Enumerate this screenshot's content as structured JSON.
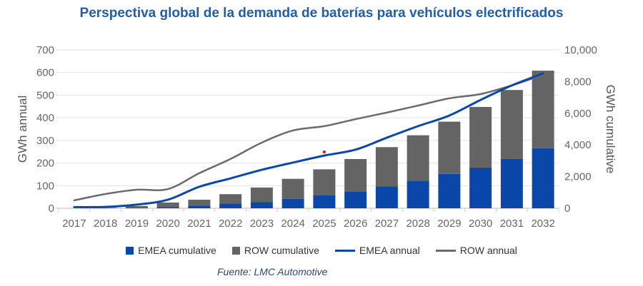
{
  "chart_data": {
    "type": "bar",
    "title": "Perspectiva global de la demanda de baterías para vehículos electrificados",
    "categories": [
      "2017",
      "2018",
      "2019",
      "2020",
      "2021",
      "2022",
      "2023",
      "2024",
      "2025",
      "2026",
      "2027",
      "2028",
      "2029",
      "2030",
      "2031",
      "2032"
    ],
    "ylabel_left": "GWh annual",
    "ylabel_right": "GWh cumulative",
    "ylim_left": [
      0,
      700
    ],
    "yticks_left": [
      "0",
      "100",
      "200",
      "300",
      "400",
      "500",
      "600",
      "700"
    ],
    "ylim_right": [
      0,
      10000
    ],
    "yticks_right": [
      "0",
      "2,000",
      "4,000",
      "6,000",
      "8,000",
      "10,000"
    ],
    "grid": true,
    "stacked": true,
    "legend_position": "bottom",
    "series": [
      {
        "name": "EMEA cumulative",
        "type": "bar",
        "axis": "right",
        "color": "#0a47a9",
        "values": [
          0,
          10,
          40,
          70,
          170,
          290,
          400,
          600,
          810,
          1070,
          1390,
          1740,
          2170,
          2570,
          3110,
          3790
        ]
      },
      {
        "name": "ROW cumulative",
        "type": "bar",
        "axis": "right",
        "color": "#646464",
        "values": [
          0,
          20,
          100,
          290,
          370,
          600,
          910,
          1260,
          1650,
          2040,
          2470,
          2870,
          3300,
          3830,
          4360,
          4900
        ]
      },
      {
        "name": "EMEA annual",
        "type": "line",
        "axis": "left",
        "color": "#0a47a9",
        "values": [
          5,
          6,
          16,
          38,
          95,
          132,
          170,
          202,
          233,
          259,
          312,
          363,
          410,
          479,
          543,
          596
        ]
      },
      {
        "name": "ROW annual",
        "type": "line",
        "axis": "left",
        "color": "#6b6b6b",
        "values": [
          35,
          63,
          82,
          85,
          155,
          218,
          290,
          344,
          363,
          394,
          423,
          454,
          486,
          505,
          543,
          590
        ]
      }
    ],
    "marker": {
      "x": "2025",
      "y": 249,
      "color": "#d42020"
    },
    "source": "Fuente: LMC Automotive"
  }
}
